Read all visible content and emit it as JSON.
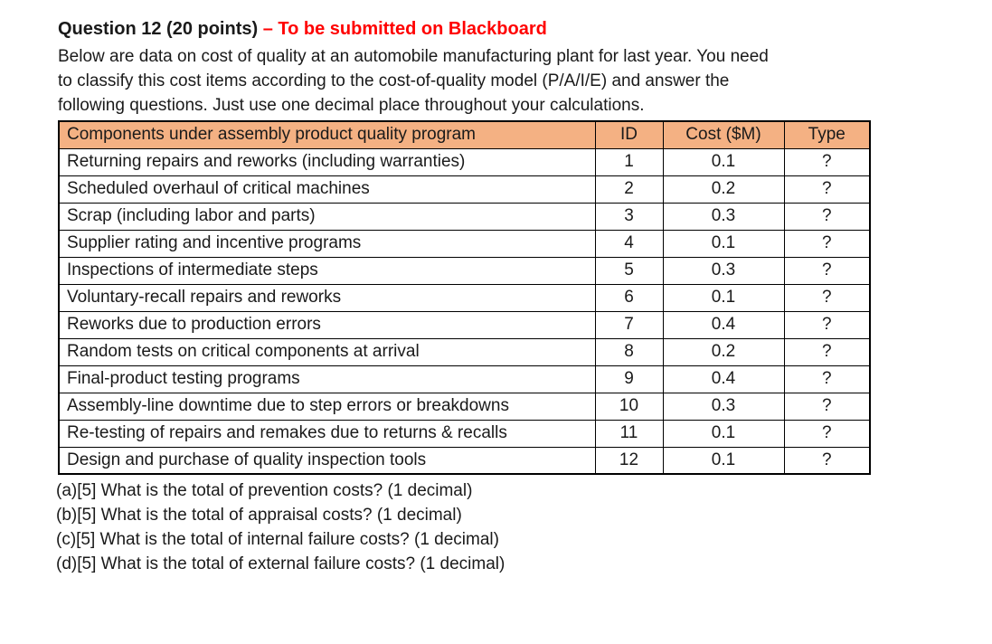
{
  "title": {
    "black_part": "Question 12 (20 points) ",
    "red_part": "– To be submitted on Blackboard"
  },
  "intro": {
    "lines": [
      "Below are data on cost of quality at an automobile manufacturing plant for last year. You need",
      "to classify this cost items according to the cost-of-quality model (P/A/I/E) and answer the",
      "following questions. Just use one decimal place throughout your calculations."
    ]
  },
  "table": {
    "headers": {
      "component": "Components under assembly product quality program",
      "id": "ID",
      "cost": "Cost ($M)",
      "type": "Type"
    },
    "rows": [
      {
        "component": "Returning repairs and reworks (including warranties)",
        "id": "1",
        "cost": "0.1",
        "type": "?"
      },
      {
        "component": "Scheduled overhaul of critical machines",
        "id": "2",
        "cost": "0.2",
        "type": "?"
      },
      {
        "component": "Scrap (including labor and parts)",
        "id": "3",
        "cost": "0.3",
        "type": "?"
      },
      {
        "component": "Supplier rating and incentive programs",
        "id": "4",
        "cost": "0.1",
        "type": "?"
      },
      {
        "component": "Inspections of intermediate steps",
        "id": "5",
        "cost": "0.3",
        "type": "?"
      },
      {
        "component": "Voluntary-recall repairs and reworks",
        "id": "6",
        "cost": "0.1",
        "type": "?"
      },
      {
        "component": "Reworks due to production errors",
        "id": "7",
        "cost": "0.4",
        "type": "?"
      },
      {
        "component": "Random tests on critical components at arrival",
        "id": "8",
        "cost": "0.2",
        "type": "?"
      },
      {
        "component": "Final-product testing programs",
        "id": "9",
        "cost": "0.4",
        "type": "?"
      },
      {
        "component": "Assembly-line downtime due to step errors or breakdowns",
        "id": "10",
        "cost": "0.3",
        "type": "?"
      },
      {
        "component": "Re-testing of repairs and remakes due to returns & recalls",
        "id": "11",
        "cost": "0.1",
        "type": "?"
      },
      {
        "component": "Design and purchase of quality inspection tools",
        "id": "12",
        "cost": "0.1",
        "type": "?"
      }
    ]
  },
  "questions": [
    "(a)[5] What is the total of prevention costs? (1 decimal)",
    "(b)[5] What is the total of appraisal costs? (1 decimal)",
    "(c)[5] What is the total of internal failure costs? (1 decimal)",
    "(d)[5] What is the total of external failure costs? (1 decimal)"
  ],
  "colors": {
    "table_header_bg": "#f4b183",
    "title_accent_red": "#ff0000",
    "border": "#000000",
    "text": "#1a1a1a",
    "background": "#ffffff"
  }
}
